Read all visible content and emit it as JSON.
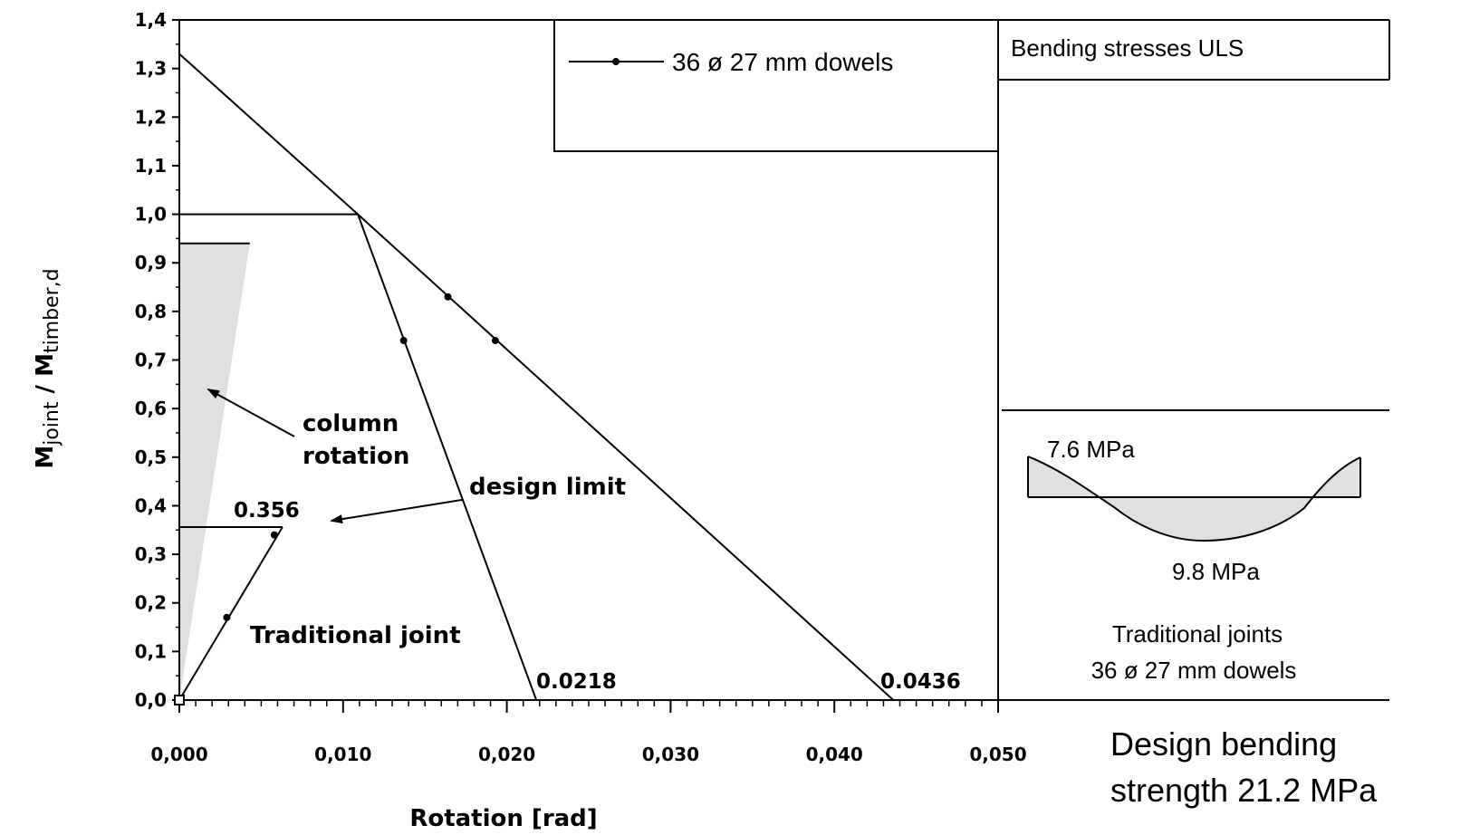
{
  "chart_data": {
    "type": "line",
    "xlabel": "Rotation [rad]",
    "ylabel_main": "M",
    "ylabel_sub1": "joint",
    "ylabel_mid": " / M",
    "ylabel_sub2": "timber,d",
    "xlim": [
      0,
      0.05
    ],
    "ylim": [
      0,
      1.4
    ],
    "x_ticks": [
      "0,000",
      "0,010",
      "0,020",
      "0,030",
      "0,040",
      "0,050"
    ],
    "x_tick_values": [
      0,
      0.01,
      0.02,
      0.03,
      0.04,
      0.05
    ],
    "y_ticks": [
      "0,0",
      "0,1",
      "0,2",
      "0,3",
      "0,4",
      "0,5",
      "0,6",
      "0,7",
      "0,8",
      "0,9",
      "1,0",
      "1,1",
      "1,2",
      "1,3",
      "1,4"
    ],
    "y_tick_values": [
      0,
      0.1,
      0.2,
      0.3,
      0.4,
      0.5,
      0.6,
      0.7,
      0.8,
      0.9,
      1.0,
      1.1,
      1.2,
      1.3,
      1.4
    ],
    "series": [
      {
        "name": "36 ø 27 mm dowels",
        "points": [
          [
            0,
            1.33
          ],
          [
            0.0109,
            1.0
          ],
          [
            0.0436,
            0
          ]
        ],
        "markers": [
          [
            0.0164,
            0.83
          ],
          [
            0.0193,
            0.74
          ]
        ]
      },
      {
        "points": [
          [
            0.0109,
            1.0
          ],
          [
            0.0218,
            0
          ]
        ],
        "markers": [
          [
            0.0137,
            0.74
          ]
        ]
      },
      {
        "points": [
          [
            0,
            0
          ],
          [
            0.0063,
            0.356
          ]
        ],
        "markers": [
          [
            0.0029,
            0.17
          ],
          [
            0.0058,
            0.34
          ]
        ]
      }
    ],
    "reference_lines": [
      {
        "points": [
          [
            0,
            1.0
          ],
          [
            0.0109,
            1.0
          ]
        ]
      },
      {
        "points": [
          [
            0,
            0.356
          ],
          [
            0.0063,
            0.356
          ]
        ]
      },
      {
        "points": [
          [
            0,
            0.94
          ],
          [
            0.0043,
            0.94
          ]
        ]
      }
    ],
    "shaded_region": [
      [
        0,
        0
      ],
      [
        0,
        0.94
      ],
      [
        0.0043,
        0.94
      ]
    ],
    "annotations": [
      {
        "text": "0.356",
        "x": 0.0036,
        "y": 0.36
      },
      {
        "text": "0.0218",
        "x": 0.0218,
        "y": 0.02
      },
      {
        "text": "0.0436",
        "x": 0.0436,
        "y": 0.02
      },
      {
        "text": "design limit",
        "x": 0.0175,
        "y": 0.44
      },
      {
        "line1": "column",
        "line2": "rotation",
        "x": 0.0075,
        "y": 0.56
      },
      {
        "text": "Traditional joint",
        "x": 0.0043,
        "y": 0.11
      }
    ],
    "legend": {
      "label": "36 ø 27 mm dowels",
      "position": "top-right"
    },
    "grid": false
  },
  "side_panel": {
    "title": "Bending stresses ULS",
    "stress_top_label": "7.6 MPa",
    "stress_bottom_label": "9.8 MPa",
    "caption_line1": "Traditional joints",
    "caption_line2": "36 ø 27 mm dowels"
  },
  "note": {
    "line1": "Design bending",
    "line2": "strength 21.2 MPa"
  }
}
